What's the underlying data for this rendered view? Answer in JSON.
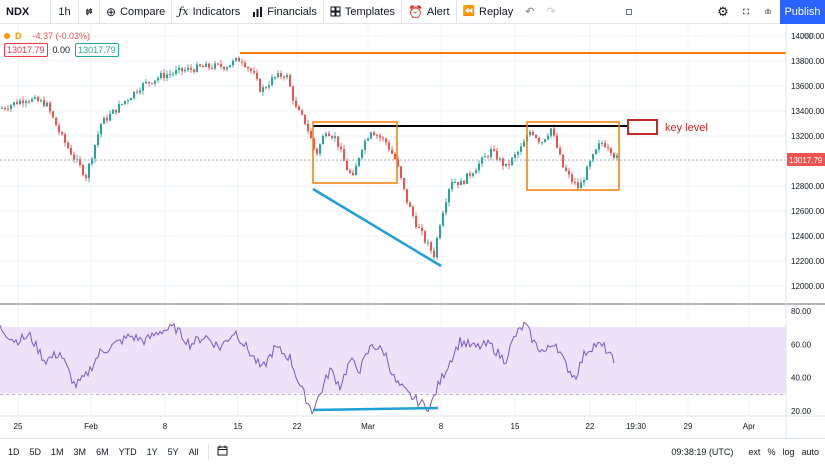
{
  "toolbar": {
    "symbol": "NDX",
    "interval": "1h",
    "compare": "Compare",
    "indicators": "Indicators",
    "financials": "Financials",
    "templates": "Templates",
    "alert": "Alert",
    "replay": "Replay",
    "publish": "Publish"
  },
  "legend": {
    "badge": "D",
    "change": "-4.37 (-0.03%)",
    "value_left": "13017.79",
    "mid_value": "0.00",
    "value_right": "13017.79"
  },
  "price_axis": {
    "currency": "USD",
    "ticks": [
      "14000.00",
      "13800.00",
      "13600.00",
      "13400.00",
      "13200.00",
      "13000.00",
      "12800.00",
      "12600.00",
      "12400.00",
      "12200.00",
      "12000.00"
    ],
    "current_price": "13017.79"
  },
  "rsi_axis": {
    "ticks": [
      "80.00",
      "60.00",
      "40.00",
      "20.00"
    ]
  },
  "time_axis": {
    "ticks": [
      "25",
      "Feb",
      "8",
      "15",
      "22",
      "Mar",
      "8",
      "15",
      "22",
      "19:30",
      "29",
      "Apr"
    ]
  },
  "annotation": {
    "label": "key level"
  },
  "bottom_bar": {
    "ranges": [
      "1D",
      "5D",
      "1M",
      "3M",
      "6M",
      "YTD",
      "1Y",
      "5Y",
      "All"
    ],
    "time": "09:38:19 (UTC)",
    "ext": "ext",
    "percent": "%",
    "log": "log",
    "auto": "auto"
  },
  "colors": {
    "up": "#26a69a",
    "down": "#ef5350",
    "orange": "#f57c00",
    "blue": "#1e9fd6",
    "rsi": "#7e57c2",
    "rsi_band": "#ede2f7",
    "key_level": "#d32f2f"
  },
  "chart_data": {
    "type": "candlestick",
    "symbol": "NDX",
    "price_range": [
      12000,
      14000
    ],
    "last_price": 13017.79,
    "key_level": 13280,
    "resistance_high": 13880,
    "price_path": [
      [
        0,
        13420
      ],
      [
        25,
        13500
      ],
      [
        45,
        13460
      ],
      [
        60,
        13200
      ],
      [
        75,
        13000
      ],
      [
        85,
        12880
      ],
      [
        100,
        13300
      ],
      [
        120,
        13450
      ],
      [
        140,
        13600
      ],
      [
        160,
        13680
      ],
      [
        180,
        13720
      ],
      [
        200,
        13750
      ],
      [
        225,
        13760
      ],
      [
        240,
        13820
      ],
      [
        252,
        13700
      ],
      [
        260,
        13560
      ],
      [
        272,
        13660
      ],
      [
        285,
        13700
      ],
      [
        295,
        13420
      ],
      [
        305,
        13300
      ],
      [
        315,
        13050
      ],
      [
        325,
        13250
      ],
      [
        335,
        13180
      ],
      [
        345,
        12950
      ],
      [
        352,
        12860
      ],
      [
        360,
        13100
      ],
      [
        370,
        13250
      ],
      [
        385,
        13150
      ],
      [
        395,
        13000
      ],
      [
        405,
        12700
      ],
      [
        415,
        12500
      ],
      [
        425,
        12350
      ],
      [
        433,
        12250
      ],
      [
        440,
        12550
      ],
      [
        450,
        12850
      ],
      [
        460,
        12820
      ],
      [
        475,
        12950
      ],
      [
        490,
        13080
      ],
      [
        505,
        12950
      ],
      [
        520,
        13100
      ],
      [
        530,
        13250
      ],
      [
        540,
        13150
      ],
      [
        550,
        13260
      ],
      [
        562,
        12950
      ],
      [
        570,
        12850
      ],
      [
        578,
        12780
      ],
      [
        590,
        13000
      ],
      [
        600,
        13150
      ],
      [
        608,
        13120
      ],
      [
        615,
        13020
      ]
    ],
    "rsi_range": [
      10,
      85
    ],
    "rsi_levels": [
      70,
      30
    ],
    "rsi_path": [
      [
        0,
        70
      ],
      [
        15,
        62
      ],
      [
        30,
        65
      ],
      [
        45,
        50
      ],
      [
        60,
        55
      ],
      [
        75,
        35
      ],
      [
        85,
        40
      ],
      [
        100,
        55
      ],
      [
        115,
        60
      ],
      [
        130,
        65
      ],
      [
        145,
        62
      ],
      [
        160,
        68
      ],
      [
        175,
        70
      ],
      [
        190,
        60
      ],
      [
        205,
        65
      ],
      [
        220,
        58
      ],
      [
        235,
        68
      ],
      [
        250,
        55
      ],
      [
        262,
        45
      ],
      [
        275,
        58
      ],
      [
        290,
        52
      ],
      [
        300,
        35
      ],
      [
        312,
        20
      ],
      [
        320,
        30
      ],
      [
        330,
        45
      ],
      [
        340,
        35
      ],
      [
        350,
        50
      ],
      [
        360,
        45
      ],
      [
        372,
        60
      ],
      [
        385,
        55
      ],
      [
        395,
        38
      ],
      [
        408,
        30
      ],
      [
        420,
        25
      ],
      [
        430,
        22
      ],
      [
        438,
        35
      ],
      [
        450,
        50
      ],
      [
        460,
        62
      ],
      [
        475,
        58
      ],
      [
        490,
        60
      ],
      [
        505,
        50
      ],
      [
        515,
        65
      ],
      [
        525,
        72
      ],
      [
        535,
        60
      ],
      [
        545,
        55
      ],
      [
        555,
        62
      ],
      [
        565,
        48
      ],
      [
        575,
        40
      ],
      [
        585,
        55
      ],
      [
        595,
        60
      ],
      [
        605,
        58
      ],
      [
        615,
        48
      ]
    ]
  }
}
